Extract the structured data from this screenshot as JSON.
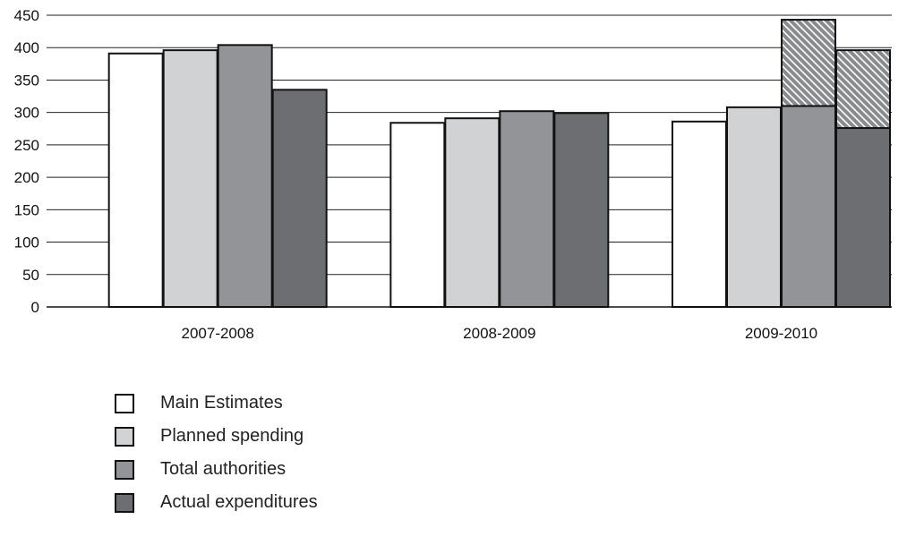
{
  "chart_data": {
    "type": "bar",
    "categories": [
      "2007-2008",
      "2008-2009",
      "2009-2010"
    ],
    "ylim": [
      0,
      450
    ],
    "yticks": [
      0,
      50,
      100,
      150,
      200,
      250,
      300,
      350,
      400,
      450
    ],
    "grid": true,
    "legend_position": "bottom-left",
    "series": [
      {
        "name": "Main Estimates",
        "color": "#ffffff",
        "values": [
          391,
          284,
          286
        ]
      },
      {
        "name": "Planned spending",
        "color": "#d1d2d4",
        "values": [
          396,
          291,
          308
        ]
      },
      {
        "name": "Total authorities",
        "color": "#929497",
        "values": [
          404,
          302,
          310
        ],
        "hatched_extra": [
          0,
          0,
          133
        ]
      },
      {
        "name": "Actual expenditures",
        "color": "#6d6e71",
        "values": [
          335,
          299,
          276
        ],
        "hatched_extra": [
          0,
          0,
          120
        ]
      }
    ],
    "hatch_color": "#8a8b8e"
  }
}
